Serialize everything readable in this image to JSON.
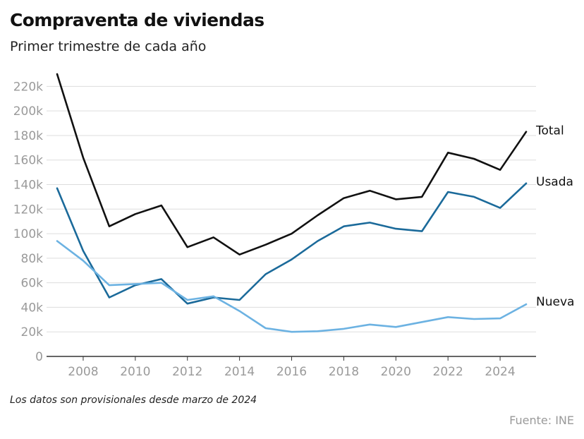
{
  "header": {
    "title": "Compraventa de viviendas",
    "subtitle": "Primer trimestre de cada año"
  },
  "footer": {
    "note": "Los datos son provisionales desde marzo de 2024",
    "source": "Fuente: INE"
  },
  "chart_data": {
    "type": "line",
    "title": "Compraventa de viviendas",
    "subtitle": "Primer trimestre de cada año",
    "xlabel": "",
    "ylabel": "",
    "x": [
      2007,
      2008,
      2009,
      2010,
      2011,
      2012,
      2013,
      2014,
      2015,
      2016,
      2017,
      2018,
      2019,
      2020,
      2021,
      2022,
      2023,
      2024,
      2025
    ],
    "xlim": [
      2007,
      2025
    ],
    "ylim": [
      0,
      230000
    ],
    "x_ticks": [
      2008,
      2010,
      2012,
      2014,
      2016,
      2018,
      2020,
      2022,
      2024
    ],
    "y_ticks": [
      0,
      20000,
      40000,
      60000,
      80000,
      100000,
      120000,
      140000,
      160000,
      180000,
      200000,
      220000
    ],
    "y_tick_labels": [
      "0",
      "20k",
      "40k",
      "60k",
      "80k",
      "100k",
      "120k",
      "140k",
      "160k",
      "180k",
      "200k",
      "220k"
    ],
    "grid": "horizontal",
    "legend": "direct labels at right end of lines",
    "series": [
      {
        "name": "Total",
        "color": "#111111",
        "values": [
          230000,
          162000,
          106000,
          116000,
          123000,
          89000,
          97000,
          83000,
          91000,
          100000,
          115000,
          129000,
          135000,
          128000,
          130000,
          166000,
          161000,
          152000,
          183000
        ]
      },
      {
        "name": "Usada",
        "color": "#1b6a9a",
        "values": [
          137000,
          86000,
          48000,
          58000,
          63000,
          43000,
          48000,
          46000,
          67000,
          79000,
          94000,
          106000,
          109000,
          104000,
          102000,
          134000,
          130000,
          121000,
          141000
        ]
      },
      {
        "name": "Nueva",
        "color": "#6cb2e2",
        "values": [
          94000,
          78000,
          58000,
          59000,
          60000,
          46000,
          49000,
          37000,
          23000,
          20000,
          20500,
          22500,
          26000,
          24000,
          28000,
          32000,
          30500,
          31000,
          42500
        ]
      }
    ]
  }
}
